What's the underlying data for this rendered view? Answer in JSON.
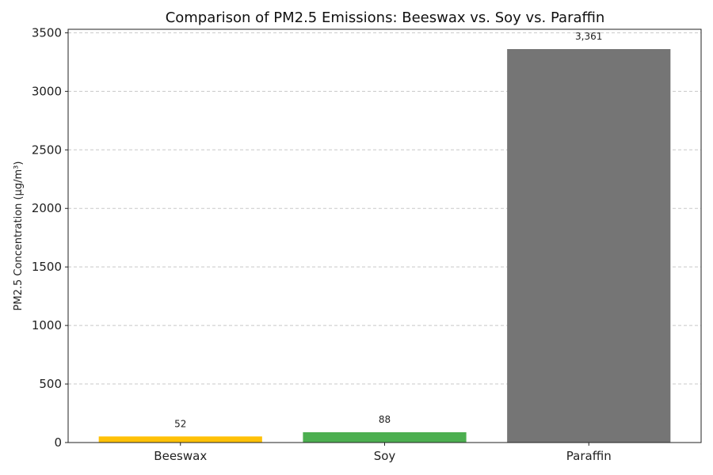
{
  "chart_data": {
    "type": "bar",
    "title": "Comparison of PM2.5 Emissions: Beeswax vs. Soy vs. Paraffin",
    "xlabel": "",
    "ylabel": "PM2.5 Concentration (μg/m³)",
    "categories": [
      "Beeswax",
      "Soy",
      "Paraffin"
    ],
    "values": [
      52,
      88,
      3361
    ],
    "data_labels": [
      "52",
      "88",
      "3,361"
    ],
    "colors": [
      "#FFC107",
      "#4CAF50",
      "#757575"
    ],
    "ylim": [
      0,
      3530
    ],
    "yticks": [
      0,
      500,
      1000,
      1500,
      2000,
      2500,
      3000,
      3500
    ],
    "grid": true,
    "legend": "none"
  }
}
